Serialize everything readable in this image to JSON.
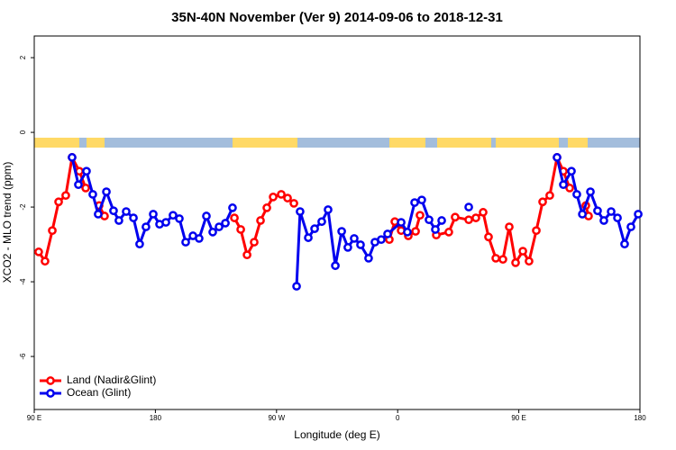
{
  "chart_data": {
    "type": "line",
    "title": "35N-40N November (Ver 9)   2014-09-06 to 2018-12-31",
    "x_label": "Longitude (deg E)",
    "y_label": "XCO2 - MLO trend (ppm)",
    "xlim": [
      90,
      540
    ],
    "ylim": [
      2.58,
      -7.42
    ],
    "xticks": [
      {
        "value": 90,
        "label": "90 E"
      },
      {
        "value": 180,
        "label": "180"
      },
      {
        "value": 270,
        "label": "90 W"
      },
      {
        "value": 360,
        "label": "0"
      },
      {
        "value": 450,
        "label": "90 E"
      },
      {
        "value": 540,
        "label": "180"
      }
    ],
    "yticks": [
      2,
      0,
      -2,
      -4,
      -6
    ],
    "legend": "bottom-left",
    "series": [
      {
        "name": "Land (Nadir&Glint)",
        "color": "#ff0000",
        "x": [
          93.3,
          98.0,
          103.4,
          108.1,
          113.4,
          118.1,
          123.5,
          128.2,
          null,
          138.2,
          142.2,
          null,
          238.7,
          243.4,
          248.1,
          253.4,
          258.1,
          262.8,
          267.5,
          273.5,
          278.2,
          282.9,
          null,
          353.8,
          357.9,
          362.6,
          367.9,
          373.3,
          376.6,
          null,
          388.7,
          398.0,
          402.7,
          412.8,
          418.1,
          423.5,
          427.5,
          432.9,
          438.2,
          442.9,
          447.6,
          453.0,
          457.6,
          463.0,
          467.7,
          473.0,
          478.4,
          483.1,
          487.8,
          null,
          499.8,
          501.8
        ],
        "values": [
          -3.2,
          -3.45,
          -2.63,
          -1.86,
          -1.69,
          -0.67,
          -1.04,
          -1.49,
          null,
          -1.96,
          -2.24,
          null,
          -2.29,
          -2.6,
          -3.28,
          -2.94,
          -2.36,
          -2.02,
          -1.73,
          -1.66,
          -1.76,
          -1.9,
          null,
          -2.87,
          -2.39,
          -2.63,
          -2.77,
          -2.65,
          -2.22,
          null,
          -2.75,
          -2.67,
          -2.27,
          -2.34,
          -2.29,
          -2.14,
          -2.8,
          -3.37,
          -3.4,
          -2.53,
          -3.49,
          -3.18,
          -3.45,
          -2.63,
          -1.86,
          -1.69,
          -0.67,
          -1.04,
          -1.49,
          null,
          -1.96,
          -2.24
        ]
      },
      {
        "name": "Ocean (Glint)",
        "color": "#0000ee",
        "x": [
          118.1,
          122.8,
          128.8,
          133.5,
          137.5,
          143.6,
          148.9,
          152.9,
          158.3,
          163.7,
          168.3,
          173.0,
          178.4,
          183.1,
          187.8,
          193.1,
          197.8,
          202.5,
          207.9,
          212.5,
          217.9,
          222.6,
          227.3,
          232.0,
          237.3,
          null,
          284.9,
          287.5,
          293.6,
          298.3,
          303.6,
          308.3,
          313.7,
          318.4,
          323.0,
          327.7,
          332.4,
          338.4,
          343.1,
          347.8,
          352.5,
          362.6,
          367.2,
          372.6,
          377.9,
          383.3,
          388.0,
          392.7,
          null,
          412.8,
          null,
          478.4,
          483.1,
          489.1,
          493.1,
          497.2,
          503.2,
          508.5,
          513.2,
          518.6,
          523.3,
          528.6,
          533.3,
          538.7
        ],
        "values": [
          -0.67,
          -1.4,
          -1.04,
          -1.66,
          -2.19,
          -1.59,
          -2.1,
          -2.36,
          -2.12,
          -2.29,
          -2.99,
          -2.53,
          -2.19,
          -2.46,
          -2.41,
          -2.22,
          -2.31,
          -2.94,
          -2.77,
          -2.84,
          -2.24,
          -2.67,
          -2.53,
          -2.43,
          -2.02,
          null,
          -4.12,
          -2.12,
          -2.82,
          -2.58,
          -2.39,
          -2.07,
          -3.57,
          -2.65,
          -3.08,
          -2.84,
          -3.01,
          -3.37,
          -2.94,
          -2.87,
          -2.72,
          -2.41,
          -2.67,
          -1.88,
          -1.81,
          -2.34,
          -2.6,
          -2.36,
          null,
          -2.0,
          null,
          -0.67,
          -1.4,
          -1.04,
          -1.66,
          -2.19,
          -1.59,
          -2.1,
          -2.36,
          -2.12,
          -2.29,
          -2.99,
          -2.53,
          -2.19
        ]
      }
    ]
  }
}
